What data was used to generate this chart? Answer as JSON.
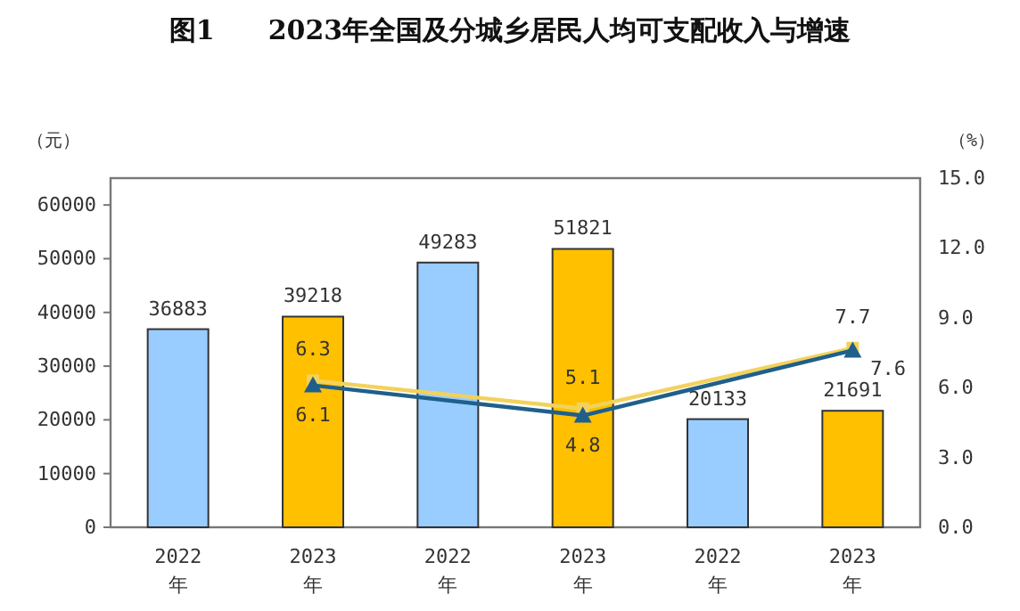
{
  "chart_data": {
    "type": "bar",
    "title": "图1　　2023年全国及分城乡居民人均可支配收入与增速",
    "ylabel": "（元）",
    "y2label": "（%）",
    "categories": [
      "2022年",
      "2023年",
      "2022年",
      "2023年",
      "2022年",
      "2023年"
    ],
    "series": [
      {
        "colors": [
          "#99ccff",
          "#ffc000",
          "#99ccff",
          "#ffc000",
          "#99ccff",
          "#ffc000"
        ],
        "values": [
          36883,
          39218,
          49283,
          51821,
          20133,
          21691
        ]
      },
      {
        "type": "line",
        "axis": "y2",
        "color": "#f2d25c",
        "marker": "square",
        "values": [
          null,
          6.3,
          null,
          5.1,
          null,
          7.7
        ]
      },
      {
        "type": "line",
        "axis": "y2",
        "color": "#1f5f8b",
        "marker": "triangle",
        "values": [
          null,
          6.1,
          null,
          4.8,
          null,
          7.6
        ]
      }
    ],
    "ylim": [
      0,
      65000
    ],
    "yticks": [
      0,
      10000,
      20000,
      30000,
      40000,
      50000,
      60000
    ],
    "y2lim": [
      0,
      15
    ],
    "y2ticks": [
      {
        "value": 0,
        "label": "0.0"
      },
      {
        "value": 3,
        "label": "3.0"
      },
      {
        "value": 6,
        "label": "6.0"
      },
      {
        "value": 9,
        "label": "9.0"
      },
      {
        "value": 12,
        "label": "12.0"
      },
      {
        "value": 15,
        "label": "15.0"
      }
    ],
    "data_labels": true,
    "grid": false
  }
}
